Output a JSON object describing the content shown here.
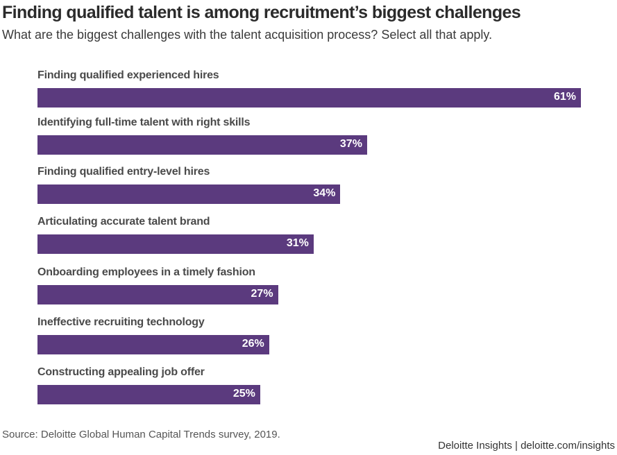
{
  "chart_data": {
    "type": "bar",
    "orientation": "horizontal",
    "title": "Finding qualified talent is among recruitment’s biggest challenges",
    "subtitle": "What are the biggest challenges with the talent acquisition process? Select all that apply.",
    "categories": [
      "Finding qualified experienced hires",
      "Identifying full-time talent with right skills",
      "Finding qualified entry-level hires",
      "Articulating accurate talent brand",
      "Onboarding employees in a timely fashion",
      "Ineffective recruiting technology",
      "Constructing appealing job offer"
    ],
    "values": [
      61,
      37,
      34,
      31,
      27,
      26,
      25
    ],
    "value_labels": [
      "61%",
      "37%",
      "34%",
      "31%",
      "27%",
      "26%",
      "25%"
    ],
    "xlabel": "",
    "ylabel": "",
    "xlim": [
      0,
      61
    ],
    "grid": false,
    "bar_color": "#5b3a7e"
  },
  "source": "Source: Deloitte Global Human Capital Trends survey, 2019.",
  "credit": "Deloitte Insights | deloitte.com/insights"
}
